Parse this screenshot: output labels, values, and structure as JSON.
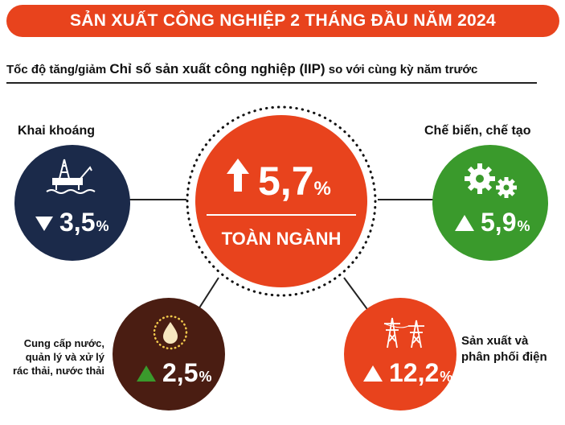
{
  "header": {
    "title": "SẢN XUẤT CÔNG NGHIỆP 2 THÁNG ĐẦU NĂM 2024",
    "subtitle_prefix": "Tốc độ tăng/giảm ",
    "subtitle_main": "Chỉ số sản xuất công nghiệp (IIP)",
    "subtitle_suffix": " so với cùng kỳ năm trước"
  },
  "chart_data": {
    "type": "infographic",
    "unit": "%",
    "total": {
      "name": "TOÀN NGÀNH",
      "value": 5.7,
      "display": "5,7",
      "direction": "up",
      "color": "#e8431d"
    },
    "sectors": [
      {
        "name": "Khai khoáng",
        "value": -3.5,
        "display": "3,5",
        "direction": "down",
        "color": "#1b2a4a",
        "icon": "oil-rig-icon"
      },
      {
        "name": "Chế biến, chế tạo",
        "value": 5.9,
        "display": "5,9",
        "direction": "up",
        "color": "#3a9a2c",
        "icon": "gears-icon"
      },
      {
        "name": "Cung cấp nước, quản lý và xử lý rác thải, nước thải",
        "value": 2.5,
        "display": "2,5",
        "direction": "up",
        "color": "#4a1d12",
        "icon": "water-drop-icon"
      },
      {
        "name": "Sản xuất và phân phối điện",
        "value": 12.2,
        "display": "12,2",
        "direction": "up",
        "color": "#e8431d",
        "icon": "power-tower-icon"
      }
    ]
  },
  "labels": {
    "mining": "Khai khoáng",
    "manufacturing": "Chế biến, chế tạo",
    "water_line1": "Cung cấp nước,",
    "water_line2": "quản lý và xử lý",
    "water_line3": "rác thải, nước thải",
    "power_line1": "Sản xuất và",
    "power_line2": "phân phối điện",
    "pct": "%"
  }
}
